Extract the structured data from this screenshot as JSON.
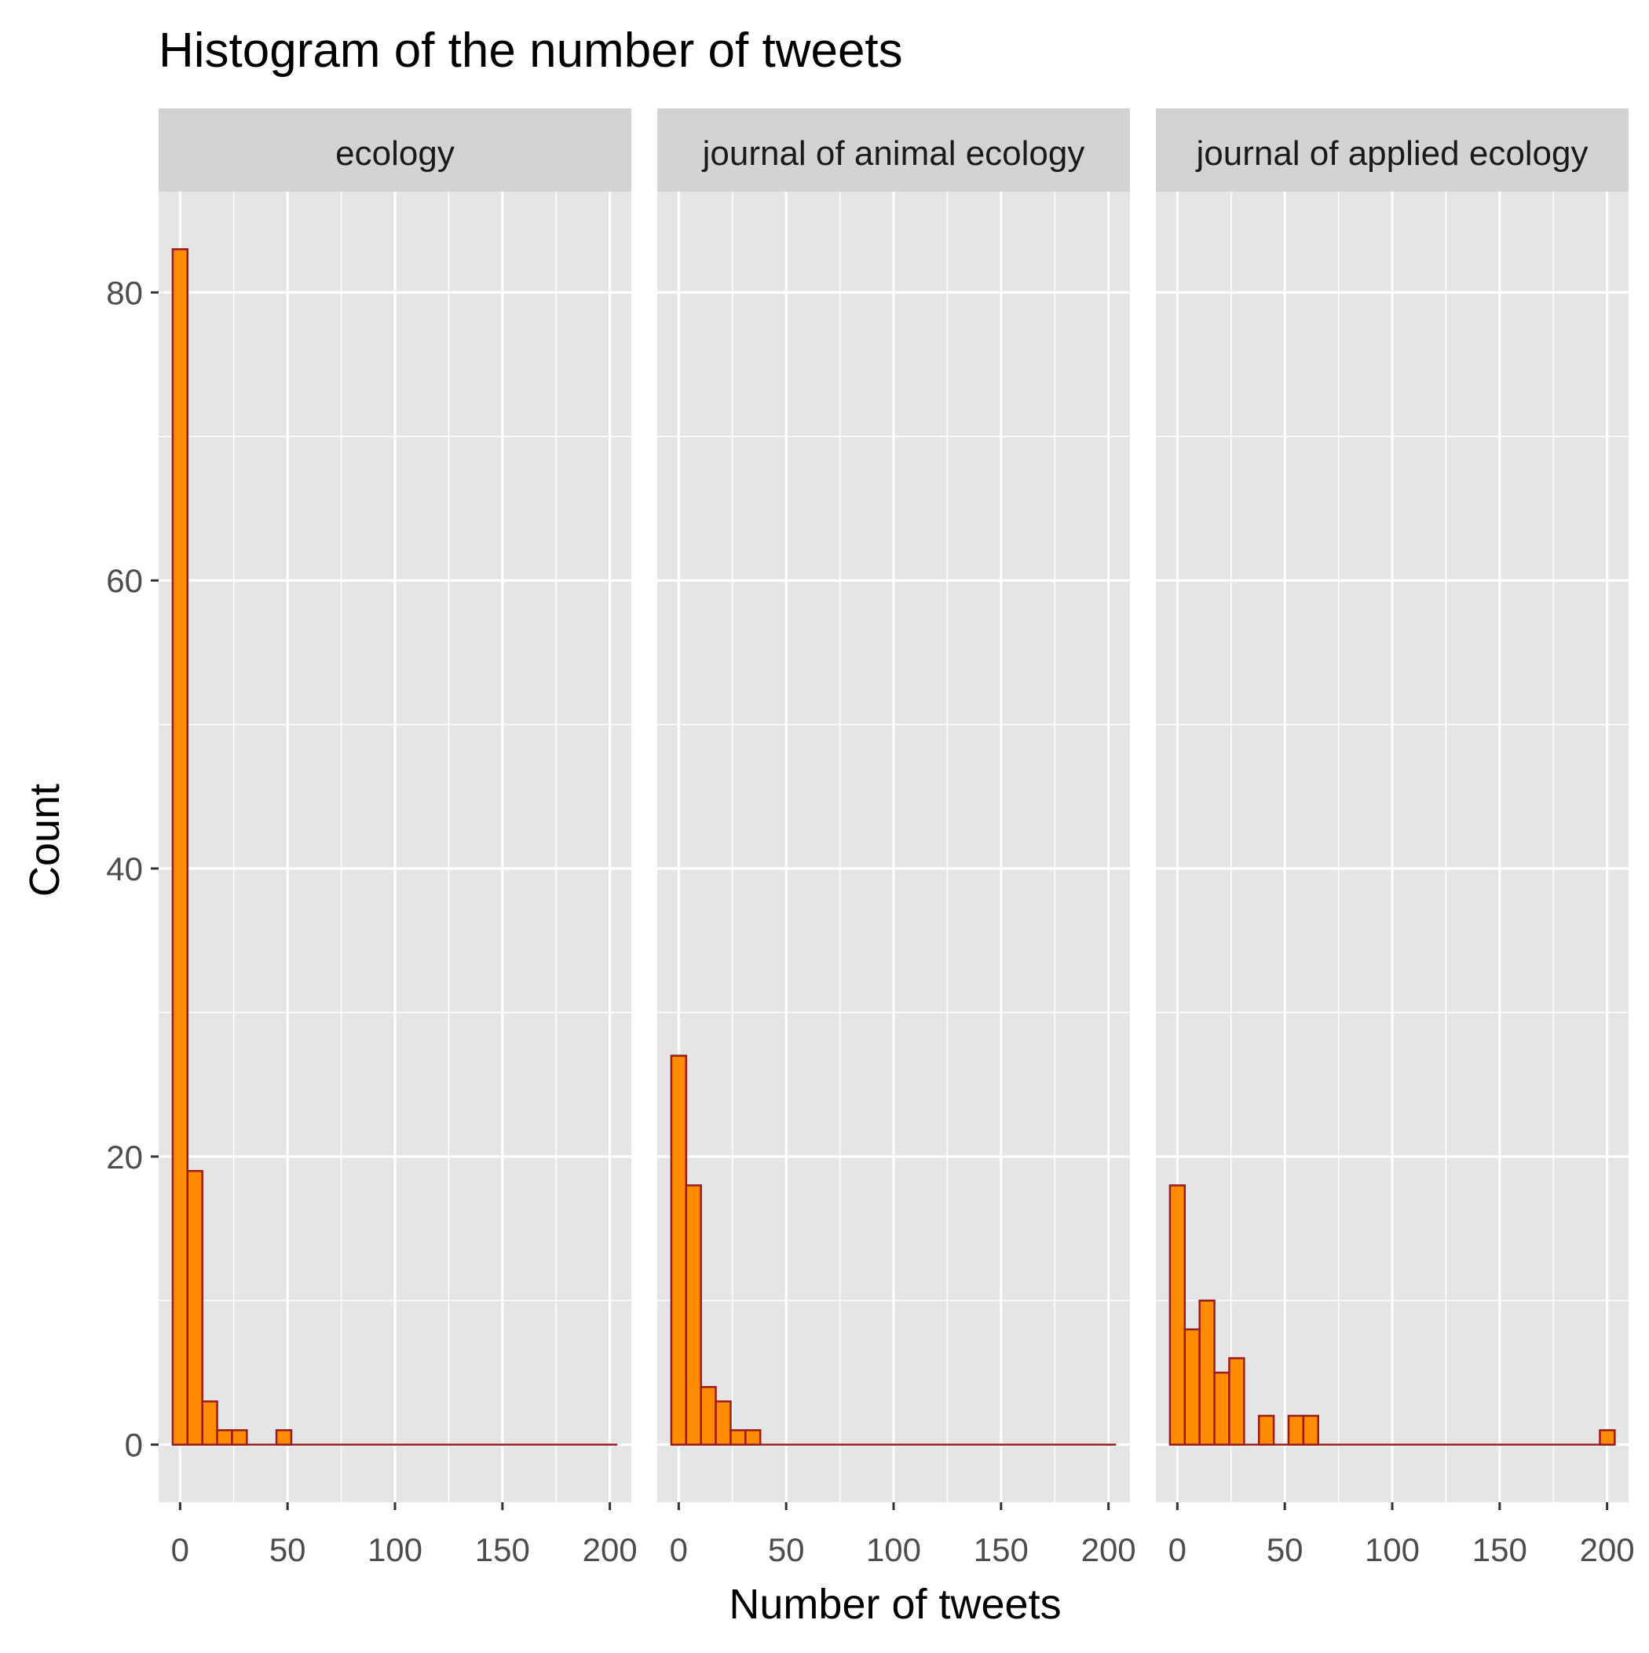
{
  "chart_data": {
    "type": "bar",
    "title": "Histogram of the number of tweets",
    "xlabel": "Number of tweets",
    "ylabel": "Count",
    "xlim": [
      -10,
      210
    ],
    "ylim": [
      -4,
      87
    ],
    "x_ticks": [
      0,
      50,
      100,
      150,
      200
    ],
    "y_ticks": [
      0,
      20,
      40,
      60,
      80
    ],
    "grid": true,
    "bin_width": 6.9,
    "colors": {
      "fill": "#FF8C00",
      "outline": "#9B1B1B",
      "panel_bg": "#E5E5E5",
      "strip_bg": "#D3D3D3",
      "grid": "#FFFFFF"
    },
    "panels": [
      {
        "label": "ecology",
        "bin_centers": [
          0,
          6.9,
          13.8,
          20.7,
          27.6,
          34.5,
          41.4,
          48.3,
          55.2,
          62.1,
          69,
          75.9,
          82.8,
          89.7,
          96.6,
          103.5,
          110.4,
          117.3,
          124.2,
          131.1,
          138,
          144.9,
          151.8,
          158.7,
          165.6,
          172.5,
          179.4,
          186.3,
          193.2,
          200.1
        ],
        "counts": [
          83,
          19,
          3,
          1,
          1,
          0,
          0,
          1,
          0,
          0,
          0,
          0,
          0,
          0,
          0,
          0,
          0,
          0,
          0,
          0,
          0,
          0,
          0,
          0,
          0,
          0,
          0,
          0,
          0,
          0
        ]
      },
      {
        "label": "journal of animal ecology",
        "bin_centers": [
          0,
          6.9,
          13.8,
          20.7,
          27.6,
          34.5,
          41.4,
          48.3,
          55.2,
          62.1,
          69,
          75.9,
          82.8,
          89.7,
          96.6,
          103.5,
          110.4,
          117.3,
          124.2,
          131.1,
          138,
          144.9,
          151.8,
          158.7,
          165.6,
          172.5,
          179.4,
          186.3,
          193.2,
          200.1
        ],
        "counts": [
          27,
          18,
          4,
          3,
          1,
          1,
          0,
          0,
          0,
          0,
          0,
          0,
          0,
          0,
          0,
          0,
          0,
          0,
          0,
          0,
          0,
          0,
          0,
          0,
          0,
          0,
          0,
          0,
          0,
          0
        ]
      },
      {
        "label": "journal of applied ecology",
        "bin_centers": [
          0,
          6.9,
          13.8,
          20.7,
          27.6,
          34.5,
          41.4,
          48.3,
          55.2,
          62.1,
          69,
          75.9,
          82.8,
          89.7,
          96.6,
          103.5,
          110.4,
          117.3,
          124.2,
          131.1,
          138,
          144.9,
          151.8,
          158.7,
          165.6,
          172.5,
          179.4,
          186.3,
          193.2,
          200.1
        ],
        "counts": [
          18,
          8,
          10,
          5,
          6,
          0,
          2,
          0,
          2,
          2,
          0,
          0,
          0,
          0,
          0,
          0,
          0,
          0,
          0,
          0,
          0,
          0,
          0,
          0,
          0,
          0,
          0,
          0,
          0,
          1
        ]
      }
    ]
  }
}
